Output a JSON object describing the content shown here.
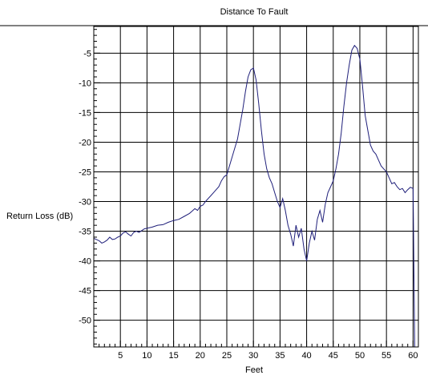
{
  "chart_data": {
    "type": "line",
    "title": "Distance To Fault",
    "xlabel": "Feet",
    "ylabel": "Return Loss (dB)",
    "xlim": [
      0,
      61
    ],
    "ylim": [
      -54.5,
      -0.5
    ],
    "x_ticks": [
      5,
      10,
      15,
      20,
      25,
      30,
      35,
      40,
      45,
      50,
      55,
      60
    ],
    "y_ticks": [
      -5,
      -10,
      -15,
      -20,
      -25,
      -30,
      -35,
      -40,
      -45,
      -50
    ],
    "grid": true,
    "colors": {
      "line": "#1f1f7a",
      "grid": "#000000",
      "frame": "#000000"
    },
    "series": [
      {
        "points": [
          [
            0,
            -36.2
          ],
          [
            0.5,
            -36.4
          ],
          [
            1,
            -36.6
          ],
          [
            1.5,
            -37.0
          ],
          [
            2,
            -36.8
          ],
          [
            2.5,
            -36.5
          ],
          [
            3,
            -36.0
          ],
          [
            3.5,
            -36.4
          ],
          [
            4,
            -36.3
          ],
          [
            4.5,
            -36.0
          ],
          [
            5,
            -35.8
          ],
          [
            5.5,
            -35.3
          ],
          [
            6,
            -35.1
          ],
          [
            6.5,
            -35.5
          ],
          [
            7,
            -35.8
          ],
          [
            7.5,
            -35.2
          ],
          [
            8,
            -35.0
          ],
          [
            8.5,
            -35.2
          ],
          [
            9,
            -34.9
          ],
          [
            9.5,
            -34.6
          ],
          [
            10,
            -34.5
          ],
          [
            11,
            -34.3
          ],
          [
            12,
            -34.0
          ],
          [
            13,
            -33.9
          ],
          [
            14,
            -33.5
          ],
          [
            15,
            -33.2
          ],
          [
            16,
            -33.0
          ],
          [
            17,
            -32.5
          ],
          [
            18,
            -32.0
          ],
          [
            18.5,
            -31.6
          ],
          [
            19,
            -31.2
          ],
          [
            19.5,
            -31.5
          ],
          [
            20,
            -30.8
          ],
          [
            20.5,
            -30.6
          ],
          [
            21,
            -30.0
          ],
          [
            21.5,
            -29.5
          ],
          [
            22,
            -29.0
          ],
          [
            22.5,
            -28.5
          ],
          [
            23,
            -28.0
          ],
          [
            23.5,
            -27.5
          ],
          [
            24,
            -26.5
          ],
          [
            24.5,
            -25.8
          ],
          [
            25,
            -25.5
          ],
          [
            25.5,
            -24.0
          ],
          [
            26,
            -22.5
          ],
          [
            26.5,
            -21.0
          ],
          [
            27,
            -19.5
          ],
          [
            27.5,
            -17.0
          ],
          [
            28,
            -14.5
          ],
          [
            28.5,
            -11.5
          ],
          [
            29,
            -9.0
          ],
          [
            29.5,
            -7.8
          ],
          [
            30,
            -7.5
          ],
          [
            30.5,
            -9.5
          ],
          [
            31,
            -13.5
          ],
          [
            31.5,
            -18.0
          ],
          [
            32,
            -22.0
          ],
          [
            32.5,
            -24.5
          ],
          [
            33,
            -26.0
          ],
          [
            33.5,
            -27.0
          ],
          [
            34,
            -28.5
          ],
          [
            34.5,
            -30.0
          ],
          [
            35,
            -31.0
          ],
          [
            35.5,
            -29.5
          ],
          [
            36,
            -31.5
          ],
          [
            36.5,
            -34.0
          ],
          [
            37,
            -35.5
          ],
          [
            37.5,
            -37.5
          ],
          [
            38,
            -34.0
          ],
          [
            38.5,
            -36.0
          ],
          [
            39,
            -34.5
          ],
          [
            39.5,
            -38.0
          ],
          [
            40,
            -40.0
          ],
          [
            40.5,
            -37.0
          ],
          [
            41,
            -35.0
          ],
          [
            41.5,
            -36.5
          ],
          [
            42,
            -33.0
          ],
          [
            42.5,
            -31.5
          ],
          [
            43,
            -33.5
          ],
          [
            43.5,
            -30.5
          ],
          [
            44,
            -28.5
          ],
          [
            44.5,
            -27.5
          ],
          [
            45,
            -26.5
          ],
          [
            45.5,
            -24.5
          ],
          [
            46,
            -22.0
          ],
          [
            46.5,
            -18.5
          ],
          [
            47,
            -14.0
          ],
          [
            47.5,
            -10.0
          ],
          [
            48,
            -7.0
          ],
          [
            48.5,
            -4.5
          ],
          [
            49,
            -3.7
          ],
          [
            49.5,
            -4.2
          ],
          [
            50,
            -6.0
          ],
          [
            50.5,
            -10.5
          ],
          [
            51,
            -15.5
          ],
          [
            51.5,
            -18.0
          ],
          [
            52,
            -20.5
          ],
          [
            52.5,
            -21.5
          ],
          [
            53,
            -22.0
          ],
          [
            53.5,
            -23.0
          ],
          [
            54,
            -24.0
          ],
          [
            54.5,
            -24.5
          ],
          [
            55,
            -25.0
          ],
          [
            55.5,
            -26.0
          ],
          [
            56,
            -27.0
          ],
          [
            56.5,
            -26.8
          ],
          [
            57,
            -27.5
          ],
          [
            57.5,
            -28.0
          ],
          [
            58,
            -27.8
          ],
          [
            58.5,
            -28.5
          ],
          [
            59,
            -28.0
          ],
          [
            59.5,
            -27.6
          ],
          [
            60,
            -27.8
          ],
          [
            60.3,
            -55.0
          ]
        ]
      }
    ]
  }
}
